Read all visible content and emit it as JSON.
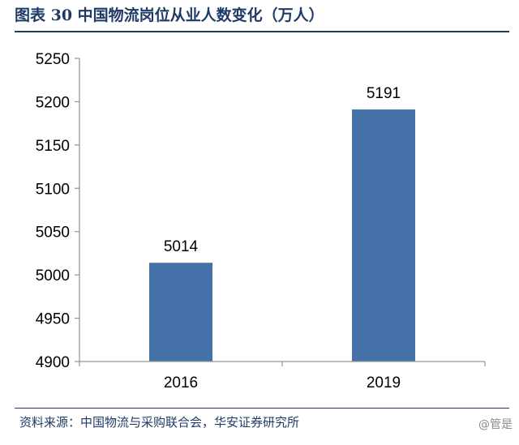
{
  "header": {
    "title": "图表 30 中国物流岗位从业人数变化（万人）"
  },
  "footer": {
    "source": "资料来源：中国物流与采购联合会，华安证券研究所",
    "watermark": "@管是"
  },
  "colors": {
    "bar": "#4472a8",
    "rule": "#1f3a66",
    "axis": "#999999"
  },
  "chart_data": {
    "type": "bar",
    "title": "图表 30 中国物流岗位从业人数变化（万人）",
    "categories": [
      "2016",
      "2019"
    ],
    "values": [
      5014,
      5191
    ],
    "data_labels": [
      "5014",
      "5191"
    ],
    "y_ticks": [
      4900,
      4950,
      5000,
      5050,
      5100,
      5150,
      5200,
      5250
    ],
    "ylim": [
      4900,
      5250
    ],
    "xlabel": "",
    "ylabel": "",
    "grid": false,
    "legend": "none"
  }
}
